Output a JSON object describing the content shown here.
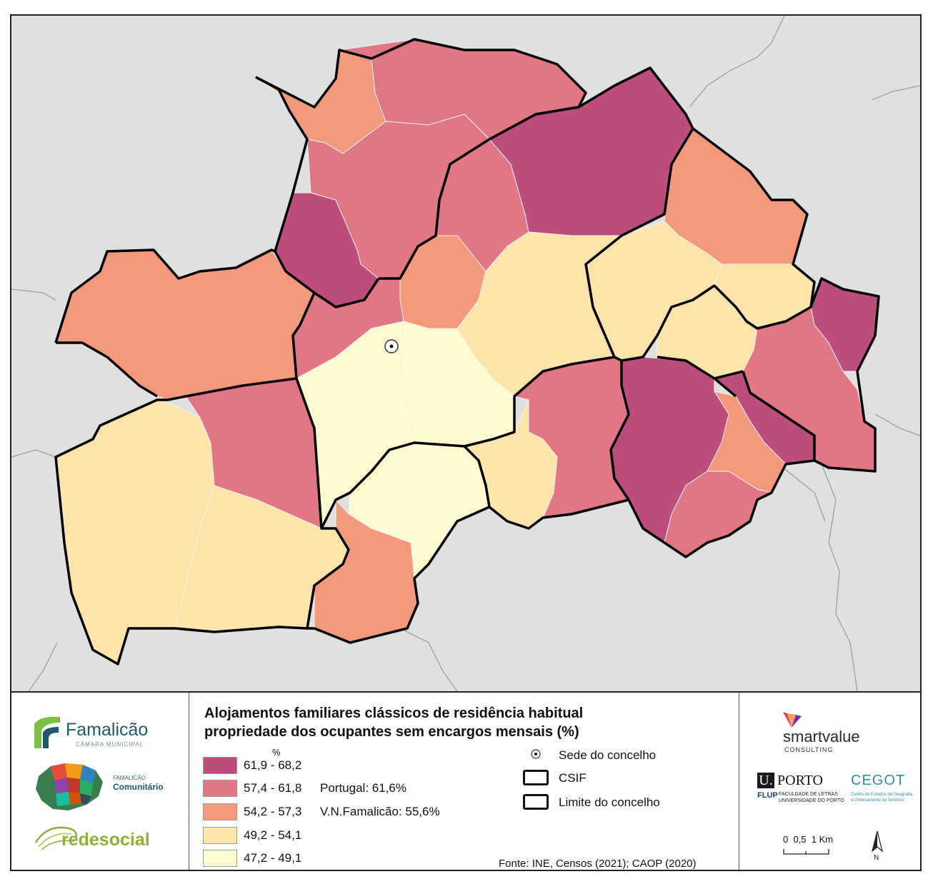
{
  "title_line1": "Alojamentos familiares clássicos de residência habitual",
  "title_line2": "propriedade dos ocupantes sem encargos mensais (%)",
  "unit": "%",
  "classes": [
    {
      "label": "61,9 - 68,2",
      "color": "#bd4d7d"
    },
    {
      "label": "57,4 - 61,8",
      "color": "#e17785"
    },
    {
      "label": "54,2 - 57,3",
      "color": "#f4997b"
    },
    {
      "label": "49,2 - 54,1",
      "color": "#fde4aa"
    },
    {
      "label": "47,2 - 49,1",
      "color": "#fefbd0"
    }
  ],
  "reference_values": {
    "portugal": "Portugal: 61,6%",
    "famalicao": "V.N.Famalicão: 55,6%"
  },
  "symbols": {
    "sede": "Sede do concelho",
    "csif": "CSIF",
    "limite": "Limite do concelho"
  },
  "source": "Fonte: INE, Censos (2021); CAOP (2020)",
  "scale_text": "0  0,5  1 Km",
  "north_label": "N",
  "logos": {
    "famalicao": "Famalicão",
    "famalicao_sub": "CÂMARA MUNICIPAL",
    "comunitario_sub": "FAMALICÃO",
    "comunitario": "Comunitário",
    "redesocial": "redesocial",
    "smartvalue": "smartvalue",
    "smartvalue_sub": "CONSULTING",
    "uporto_u": "U.",
    "uporto": "PORTO",
    "flup": "FLUP",
    "flup_sub1": "FACULDADE DE LETRAS",
    "flup_sub2": "UNIVERSIDADE DO PORTO",
    "cegot": "CEGOT",
    "cegot_sub1": "Centro de Estudos de Geografia",
    "cegot_sub2": "e Ordenamento do Território"
  },
  "colors": {
    "background": "#e0e0e0",
    "outside_line": "#9a9a9a",
    "boundary": "#000000"
  }
}
